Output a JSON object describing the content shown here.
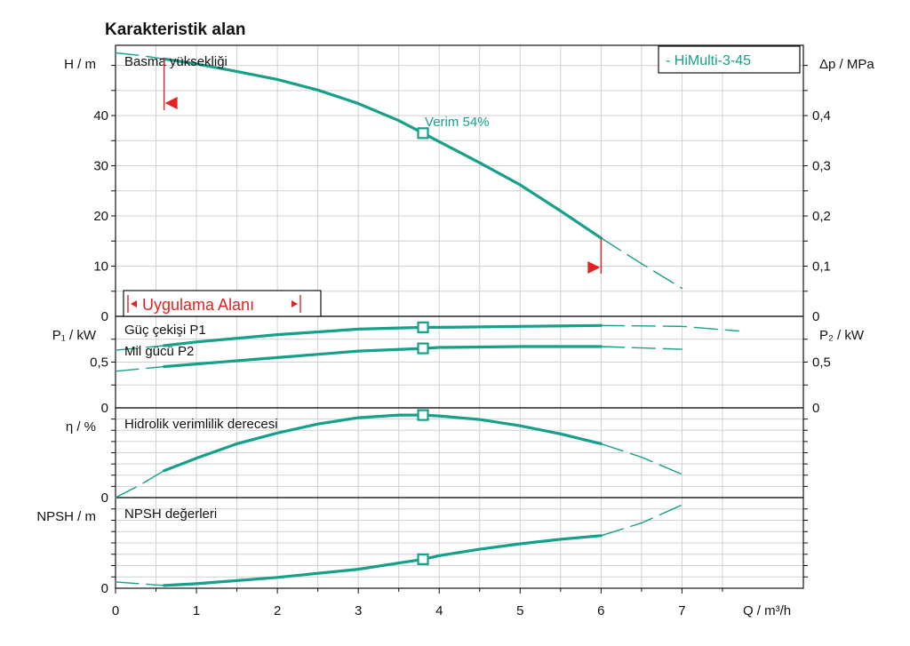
{
  "chart_data": {
    "type": "line",
    "title": "Karakteristik alan",
    "x_axis": {
      "label": "Q / m³/h",
      "range": [
        0,
        8.5
      ],
      "ticks": [
        "0",
        "1",
        "2",
        "3",
        "4",
        "5",
        "6",
        "7"
      ]
    },
    "legend": {
      "text": "-   HiMulti-3-45",
      "placement": "top-right"
    },
    "series_color": "#16a08a",
    "marker_color": "#16a08a",
    "range_color": "#e32222",
    "grid": true,
    "operating_point": {
      "q": 3.8
    },
    "application_range": {
      "label": "Uygulama Alanı",
      "q_min": 0.6,
      "q_max": 6.0
    },
    "panels": [
      {
        "id": "head",
        "label": "Basma yüksekliği",
        "y_left": {
          "label": "H / m",
          "range": [
            0,
            54
          ],
          "ticks": [
            "0",
            "10",
            "20",
            "30",
            "40"
          ]
        },
        "y_right": {
          "label": "Δp / MPa",
          "range": [
            0,
            0.54
          ],
          "ticks": [
            "0",
            "0,1",
            "0,2",
            "0,3",
            "0,4"
          ]
        },
        "annotation": "Verim  54%",
        "series": [
          {
            "segment": "left-dashed",
            "x": [
              0,
              0.3,
              0.6
            ],
            "y": [
              52.5,
              52.0,
              51.3
            ]
          },
          {
            "segment": "solid",
            "x": [
              0.6,
              1,
              1.5,
              2,
              2.5,
              3,
              3.5,
              3.8,
              4,
              4.5,
              5,
              5.5,
              6
            ],
            "y": [
              51.3,
              50.3,
              48.8,
              47.2,
              45.1,
              42.4,
              39.0,
              36.5,
              34.8,
              30.6,
              26.2,
              21.0,
              15.6
            ]
          },
          {
            "segment": "right-dashed",
            "x": [
              6,
              6.5,
              7
            ],
            "y": [
              15.6,
              10.5,
              5.6
            ]
          }
        ],
        "markers": [
          {
            "x": 3.8,
            "y": 36.5
          }
        ]
      },
      {
        "id": "power",
        "label_p1": "Güç çekişi P1",
        "label_p2": "Mil gücü P2",
        "y_left": {
          "label": "P₁ / kW",
          "range": [
            0,
            1.0
          ],
          "ticks": [
            "0",
            "0,5"
          ]
        },
        "y_right": {
          "label": "P₂ / kW",
          "range": [
            0,
            1.0
          ],
          "ticks": [
            "0",
            "0,5"
          ]
        },
        "series": [
          {
            "name": "Güç çekişi P1",
            "segment": "left-dashed",
            "x": [
              0,
              0.6
            ],
            "y": [
              0.63,
              0.68
            ]
          },
          {
            "name": "Güç çekişi P1",
            "segment": "solid",
            "x": [
              0.6,
              1,
              2,
              3,
              3.8,
              4,
              5,
              6
            ],
            "y": [
              0.68,
              0.72,
              0.8,
              0.86,
              0.88,
              0.88,
              0.89,
              0.9
            ]
          },
          {
            "name": "Güç çekişi P1",
            "segment": "right-dashed",
            "x": [
              6,
              7,
              7.7
            ],
            "y": [
              0.9,
              0.89,
              0.84
            ]
          },
          {
            "name": "Mil gücü P2",
            "segment": "left-dashed",
            "x": [
              0,
              0.6
            ],
            "y": [
              0.4,
              0.45
            ]
          },
          {
            "name": "Mil gücü P2",
            "segment": "solid",
            "x": [
              0.6,
              1,
              2,
              3,
              3.8,
              4,
              5,
              6
            ],
            "y": [
              0.45,
              0.48,
              0.55,
              0.62,
              0.65,
              0.66,
              0.67,
              0.67
            ]
          },
          {
            "name": "Mil gücü P2",
            "segment": "right-dashed",
            "x": [
              6,
              7
            ],
            "y": [
              0.67,
              0.64
            ]
          }
        ],
        "markers": [
          {
            "x": 3.8,
            "y": 0.88
          },
          {
            "x": 3.8,
            "y": 0.65
          }
        ]
      },
      {
        "id": "efficiency",
        "label": "Hidrolik verimlilik derecesi",
        "y_left": {
          "label": "η / %",
          "range": [
            0,
            100
          ],
          "ticks": [
            "0"
          ]
        },
        "series": [
          {
            "segment": "left-dashed",
            "x": [
              0,
              0.3,
              0.6
            ],
            "y": [
              0,
              14,
              30
            ]
          },
          {
            "segment": "solid",
            "x": [
              0.6,
              1,
              1.5,
              2,
              2.5,
              3,
              3.5,
              3.8,
              4,
              4.5,
              5,
              5.5,
              6
            ],
            "y": [
              30,
              44,
              60,
              72,
              82,
              89,
              92,
              92,
              91,
              87,
              80,
              71,
              60
            ]
          },
          {
            "segment": "right-dashed",
            "x": [
              6,
              6.5,
              7
            ],
            "y": [
              60,
              45,
              26
            ]
          }
        ],
        "markers": [
          {
            "x": 3.8,
            "y": 92
          }
        ]
      },
      {
        "id": "npsh",
        "label": "NPSH değerleri",
        "y_left": {
          "label": "NPSH  / m",
          "range": [
            0,
            100
          ],
          "ticks": [
            "0"
          ]
        },
        "series": [
          {
            "segment": "left-dashed",
            "x": [
              0,
              0.3,
              0.6
            ],
            "y": [
              7,
              5,
              3
            ]
          },
          {
            "segment": "solid",
            "x": [
              0.6,
              1,
              2,
              3,
              3.8,
              4,
              4.5,
              5,
              5.5,
              6
            ],
            "y": [
              3,
              5,
              12,
              21,
              32,
              36,
              43,
              49,
              54,
              58
            ]
          },
          {
            "segment": "right-dashed",
            "x": [
              6,
              6.5,
              7
            ],
            "y": [
              58,
              72,
              92
            ]
          }
        ],
        "markers": [
          {
            "x": 3.8,
            "y": 32
          }
        ]
      }
    ]
  }
}
